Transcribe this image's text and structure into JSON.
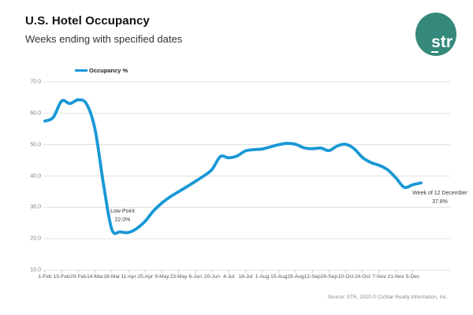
{
  "header": {
    "title": "U.S. Hotel Occupancy",
    "subtitle": "Weeks ending with specified dates"
  },
  "logo": {
    "text": "str",
    "color": "#35897B"
  },
  "legend": {
    "label": "Occupancy %"
  },
  "annotations": {
    "low_point": {
      "line1": "Low Point",
      "line2": "22.0%"
    },
    "end_point": {
      "line1": "Week of 12 December",
      "line2": "37.8%"
    }
  },
  "source": "Source: STR, 2020 © CoStar Realty Information, Inc.",
  "chart_data": {
    "type": "line",
    "title": "U.S. Hotel Occupancy",
    "subtitle": "Weeks ending with specified dates",
    "series_name": "Occupancy %",
    "line_color": "#1898d6",
    "grid": "horizontal-only",
    "legend_position": "top-left",
    "ylim": [
      10,
      70
    ],
    "y_tick_labels": [
      "70.0",
      "60.0",
      "50.0",
      "40.0",
      "30.0",
      "20.0",
      "10.0"
    ],
    "x": [
      "1-Feb",
      "8-Feb",
      "15-Feb",
      "22-Feb",
      "29-Feb",
      "7-Mar",
      "14-Mar",
      "21-Mar",
      "28-Mar",
      "4-Apr",
      "11-Apr",
      "18-Apr",
      "25-Apr",
      "2-May",
      "9-May",
      "16-May",
      "23-May",
      "30-May",
      "6-Jun",
      "13-Jun",
      "20-Jun",
      "27-Jun",
      "4-Jul",
      "11-Jul",
      "18-Jul",
      "25-Jul",
      "1-Aug",
      "8-Aug",
      "15-Aug",
      "22-Aug",
      "29-Aug",
      "5-Sep",
      "12-Sep",
      "19-Sep",
      "26-Sep",
      "3-Oct",
      "10-Oct",
      "17-Oct",
      "24-Oct",
      "31-Oct",
      "7-Nov",
      "14-Nov",
      "21-Nov",
      "28-Nov",
      "5-Dec",
      "12-Dec"
    ],
    "x_tick_labels": [
      "1-Feb",
      "15-Feb",
      "29-Feb",
      "14-Mar",
      "28-Mar",
      "11-Apr",
      "25-Apr",
      "9-May",
      "23-May",
      "6-Jun",
      "20-Jun",
      "4-Jul",
      "18-Jul",
      "1-Aug",
      "15-Aug",
      "29-Aug",
      "12-Sep",
      "26-Sep",
      "10-Oct",
      "24-Oct",
      "7-Nov",
      "21-Nov",
      "5-Dec"
    ],
    "values": [
      57.5,
      58.7,
      63.9,
      63.1,
      64.3,
      62.9,
      54.8,
      37.5,
      23.0,
      22.2,
      22.0,
      23.3,
      25.6,
      28.9,
      31.4,
      33.4,
      35.0,
      36.6,
      38.3,
      40.0,
      42.1,
      46.2,
      45.8,
      46.4,
      48.0,
      48.4,
      48.6,
      49.3,
      50.0,
      50.4,
      50.1,
      49.0,
      48.7,
      48.9,
      48.1,
      49.6,
      50.1,
      48.7,
      45.9,
      44.3,
      43.4,
      42.0,
      39.4,
      36.4,
      37.2,
      37.8
    ],
    "low_point_value": 22.0,
    "last_point_label": "Week of 12 December",
    "last_point_value": 37.8
  }
}
